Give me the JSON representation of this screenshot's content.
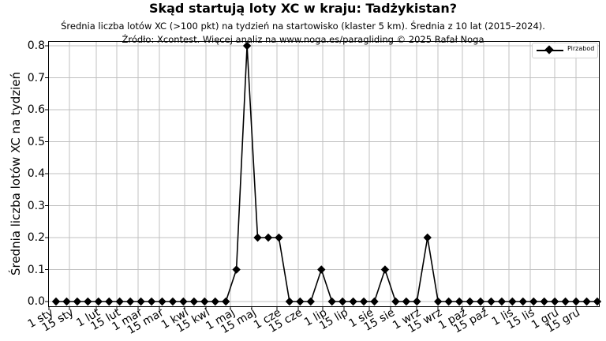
{
  "header": {
    "title": "Skąd startują loty XC w kraju: Tadżykistan?",
    "subtitle_line1": "Średnia liczba lotów XC (>100 pkt) na tydzień na startowisko (klaster 5 km). Średnia z 10 lat (2015–2024).",
    "subtitle_line2": "Źródło: Xcontest. Więcej analiz na www.noga.es/paragliding © 2025 Rafał Noga"
  },
  "axes": {
    "ylabel": "Średnia liczba lotów XC na tydzień",
    "yticks": [
      "0.0",
      "0.1",
      "0.2",
      "0.3",
      "0.4",
      "0.5",
      "0.6",
      "0.7",
      "0.8"
    ],
    "xticks": [
      "1 sty",
      "15 sty",
      "1 lut",
      "15 lut",
      "1 mar",
      "15 mar",
      "1 kwi",
      "15 kwi",
      "1 maj",
      "15 maj",
      "1 cze",
      "15 cze",
      "1 lip",
      "15 lip",
      "1 sie",
      "15 sie",
      "1 wrz",
      "15 wrz",
      "1 paź",
      "15 paź",
      "1 lis",
      "15 lis",
      "1 gru",
      "15 gru"
    ]
  },
  "legend": {
    "entries": [
      {
        "label": "Pirzabod",
        "color": "#000000",
        "marker": "diamond"
      }
    ]
  },
  "chart_data": {
    "type": "line",
    "title": "Skąd startują loty XC w kraju: Tadżykistan?",
    "subtitle": "Średnia liczba lotów XC (>100 pkt) na tydzień na startowisko (klaster 5 km). Średnia z 10 lat (2015–2024). Źródło: Xcontest. Więcej analiz na www.noga.es/paragliding © 2025 Rafał Noga",
    "xlabel": "",
    "ylabel": "Średnia liczba lotów XC na tydzień",
    "ylim": [
      0,
      0.8
    ],
    "grid": true,
    "legend_position": "upper right",
    "x": [
      1,
      2,
      3,
      4,
      5,
      6,
      7,
      8,
      9,
      10,
      11,
      12,
      13,
      14,
      15,
      16,
      17,
      18,
      19,
      20,
      21,
      22,
      23,
      24,
      25,
      26,
      27,
      28,
      29,
      30,
      31,
      32,
      33,
      34,
      35,
      36,
      37,
      38,
      39,
      40,
      41,
      42,
      43,
      44,
      45,
      46,
      47,
      48,
      49,
      50,
      51,
      52
    ],
    "x_unit": "week of year",
    "xtick_labels": [
      "1 sty",
      "15 sty",
      "1 lut",
      "15 lut",
      "1 mar",
      "15 mar",
      "1 kwi",
      "15 kwi",
      "1 maj",
      "15 maj",
      "1 cze",
      "15 cze",
      "1 lip",
      "15 lip",
      "1 sie",
      "15 sie",
      "1 wrz",
      "15 wrz",
      "1 paź",
      "15 paź",
      "1 lis",
      "15 lis",
      "1 gru",
      "15 gru"
    ],
    "series": [
      {
        "name": "Pirzabod",
        "color": "#000000",
        "marker": "diamond",
        "values": [
          0,
          0,
          0,
          0,
          0,
          0,
          0,
          0,
          0,
          0,
          0,
          0,
          0,
          0,
          0,
          0,
          0,
          0.1,
          0.8,
          0.2,
          0.2,
          0.2,
          0,
          0,
          0,
          0.1,
          0,
          0,
          0,
          0,
          0,
          0.1,
          0,
          0,
          0,
          0.2,
          0,
          0,
          0,
          0,
          0,
          0,
          0,
          0,
          0,
          0,
          0,
          0,
          0,
          0,
          0,
          0
        ]
      }
    ]
  }
}
